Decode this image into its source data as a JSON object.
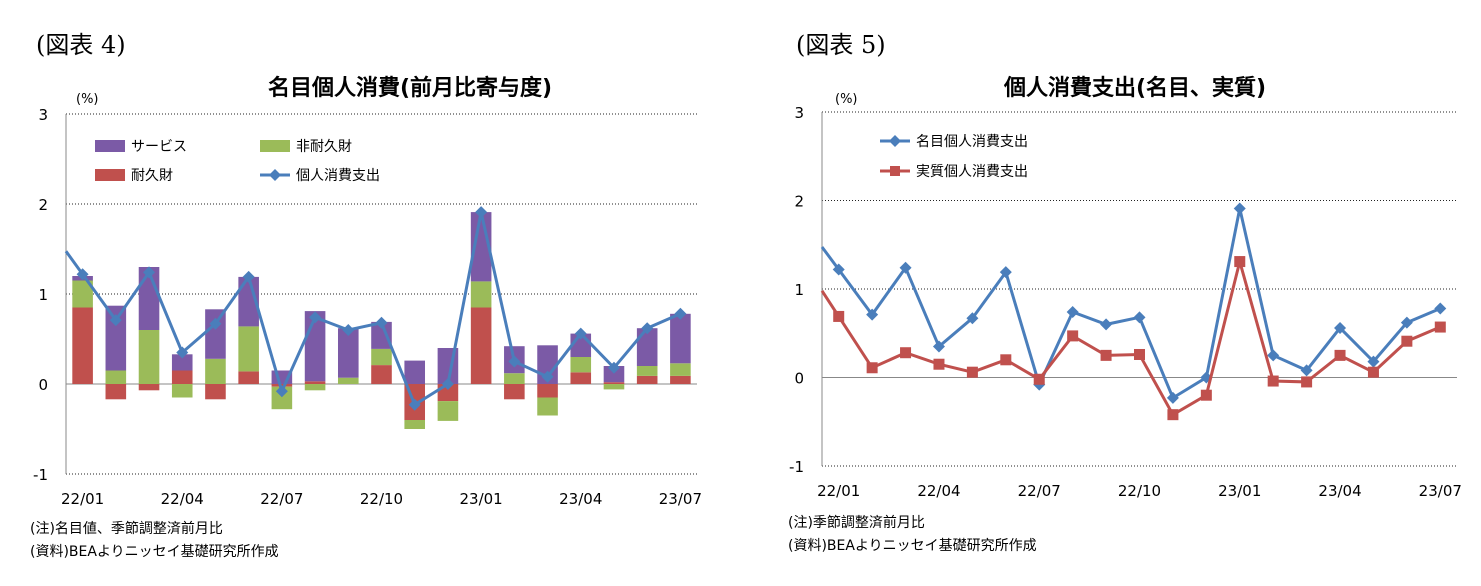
{
  "figures": [
    {
      "label": "(図表 4)",
      "note1": "(注)名目値、季節調整済前月比",
      "note2": "(資料)BEAよりニッセイ基礎研究所作成"
    },
    {
      "label": "(図表 5)",
      "note1": "(注)季節調整済前月比",
      "note2": "(資料)BEAよりニッセイ基礎研究所作成"
    }
  ],
  "chart_data": [
    {
      "type": "bar",
      "stacked": true,
      "title": "名目個人消費(前月比寄与度)",
      "unit": "(%)",
      "ylim": [
        -1,
        3
      ],
      "yticks": [
        "3",
        "2",
        "1",
        "0",
        "-1"
      ],
      "categories": [
        "22/01",
        "22/02",
        "22/03",
        "22/04",
        "22/05",
        "22/06",
        "22/07",
        "22/08",
        "22/09",
        "22/10",
        "22/11",
        "22/12",
        "23/01",
        "23/02",
        "23/03",
        "23/04",
        "23/05",
        "23/06",
        "23/07"
      ],
      "xtick_labels": [
        "22/01",
        "22/04",
        "22/07",
        "22/10",
        "23/01",
        "23/04",
        "23/07"
      ],
      "grid": "horizontal-dotted",
      "legend_position": "top-left",
      "series": [
        {
          "name": "サービス",
          "color": "#7b5aa6",
          "values": [
            0.05,
            0.72,
            0.7,
            0.18,
            0.55,
            0.55,
            0.15,
            0.78,
            0.55,
            0.3,
            0.26,
            0.4,
            0.77,
            0.3,
            0.43,
            0.26,
            0.18,
            0.42,
            0.55
          ]
        },
        {
          "name": "非耐久財",
          "color": "#9bbb59",
          "values": [
            0.3,
            0.15,
            0.6,
            -0.15,
            0.28,
            0.5,
            -0.25,
            -0.07,
            0.07,
            0.18,
            -0.1,
            -0.22,
            0.29,
            0.12,
            -0.2,
            0.17,
            -0.06,
            0.11,
            0.14
          ]
        },
        {
          "name": "耐久財",
          "color": "#c0504d",
          "values": [
            0.85,
            -0.17,
            -0.07,
            0.15,
            -0.17,
            0.14,
            -0.03,
            0.03,
            0.0,
            0.21,
            -0.4,
            -0.19,
            0.85,
            -0.17,
            -0.15,
            0.13,
            0.02,
            0.09,
            0.09
          ]
        },
        {
          "name": "個人消費支出",
          "color": "#4a7ebb",
          "type": "line",
          "values": [
            1.22,
            0.71,
            1.24,
            0.35,
            0.67,
            1.19,
            -0.08,
            0.74,
            0.6,
            0.68,
            -0.23,
            0.0,
            1.91,
            0.25,
            0.08,
            0.56,
            0.18,
            0.62,
            0.78
          ]
        }
      ]
    },
    {
      "type": "line",
      "title": "個人消費支出(名目、実質)",
      "unit": "(%)",
      "ylim": [
        -1,
        3
      ],
      "yticks": [
        "3",
        "2",
        "1",
        "0",
        "-1"
      ],
      "categories": [
        "22/01",
        "22/02",
        "22/03",
        "22/04",
        "22/05",
        "22/06",
        "22/07",
        "22/08",
        "22/09",
        "22/10",
        "22/11",
        "22/12",
        "23/01",
        "23/02",
        "23/03",
        "23/04",
        "23/05",
        "23/06",
        "23/07"
      ],
      "xtick_labels": [
        "22/01",
        "22/04",
        "22/07",
        "22/10",
        "23/01",
        "23/04",
        "23/07"
      ],
      "grid": "horizontal-dotted",
      "legend_position": "top-left",
      "series": [
        {
          "name": "名目個人消費支出",
          "color": "#4a7ebb",
          "marker": "diamond",
          "values": [
            1.22,
            0.71,
            1.24,
            0.35,
            0.67,
            1.19,
            -0.08,
            0.74,
            0.6,
            0.68,
            -0.23,
            0.0,
            1.91,
            0.25,
            0.08,
            0.56,
            0.18,
            0.62,
            0.78
          ]
        },
        {
          "name": "実質個人消費支出",
          "color": "#c0504d",
          "marker": "square",
          "values": [
            0.69,
            0.11,
            0.28,
            0.15,
            0.06,
            0.2,
            -0.02,
            0.47,
            0.25,
            0.26,
            -0.42,
            -0.2,
            1.31,
            -0.04,
            -0.05,
            0.25,
            0.06,
            0.41,
            0.57
          ]
        }
      ]
    }
  ]
}
